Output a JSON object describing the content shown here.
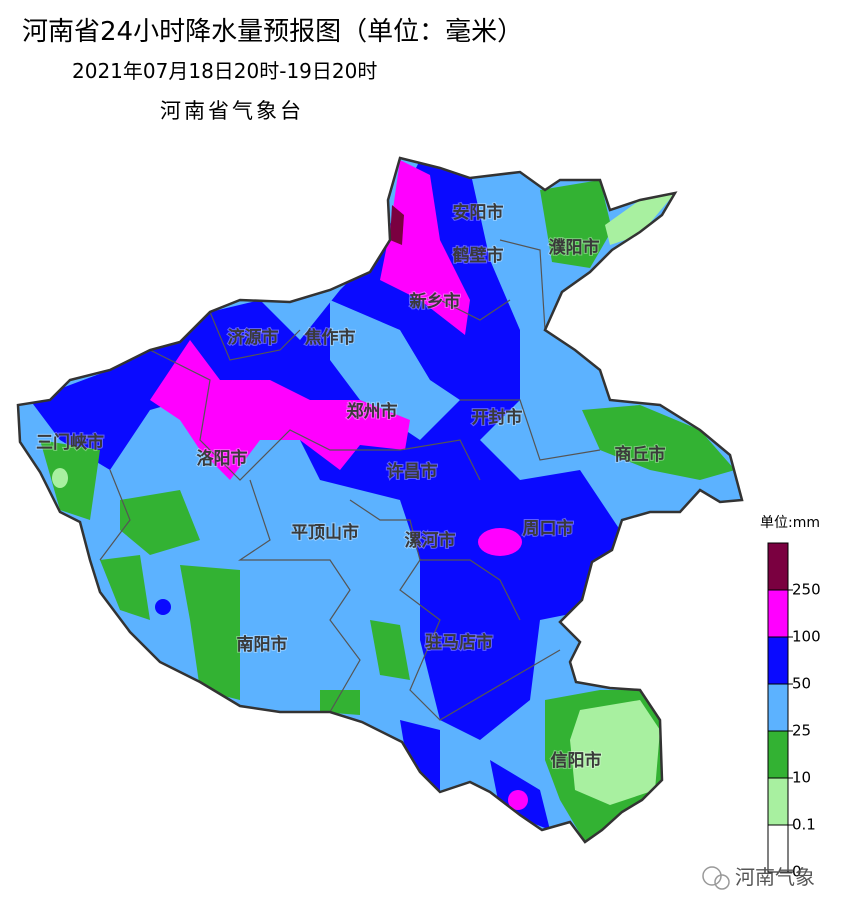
{
  "header": {
    "title": "河南省24小时降水量预报图（单位：毫米）",
    "period": "2021年07月18日20时-19日20时",
    "issuer": "河南省气象台"
  },
  "cities": [
    "安阳市",
    "鹤壁市",
    "濮阳市",
    "新乡市",
    "济源市",
    "焦作市",
    "郑州市",
    "开封市",
    "三门峡市",
    "洛阳市",
    "商丘市",
    "许昌市",
    "平顶山市",
    "漯河市",
    "周口市",
    "南阳市",
    "驻马店市",
    "信阳市"
  ],
  "legend": {
    "title": "单位:mm",
    "bins": [
      {
        "color": "#7a0040",
        "label": "250"
      },
      {
        "color": "#ff00ff",
        "label": "100"
      },
      {
        "color": "#0a0aff",
        "label": "50"
      },
      {
        "color": "#5cb2ff",
        "label": "25"
      },
      {
        "color": "#33b233",
        "label": "10"
      },
      {
        "color": "#a8f0a0",
        "label": "0.1"
      },
      {
        "color": "#ffffff",
        "label": "0"
      }
    ]
  },
  "watermark": "河南气象"
}
